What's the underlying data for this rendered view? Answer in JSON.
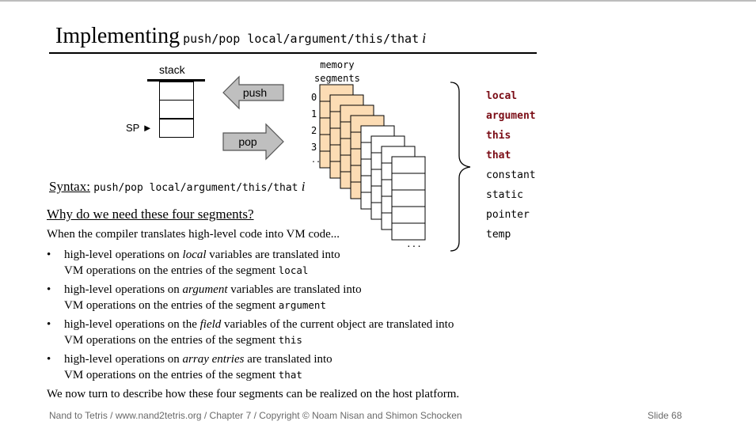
{
  "title": {
    "main": "Implementing",
    "code": "push/pop local/argument/this/that",
    "italic": "i"
  },
  "diagram": {
    "stack_label": "stack",
    "sp_label": "SP",
    "push_label": "push",
    "pop_label": "pop",
    "memory_label_line1": "memory",
    "memory_label_line2": "segments",
    "indices": [
      "0",
      "1",
      "2",
      "3",
      "..."
    ],
    "ellipsis": "...",
    "segments": [
      {
        "name": "local",
        "highlight": true
      },
      {
        "name": "argument",
        "highlight": true
      },
      {
        "name": "this",
        "highlight": true
      },
      {
        "name": "that",
        "highlight": true
      },
      {
        "name": "constant",
        "highlight": false
      },
      {
        "name": "static",
        "highlight": false
      },
      {
        "name": "pointer",
        "highlight": false
      },
      {
        "name": "temp",
        "highlight": false
      }
    ],
    "highlight_color": "#7b0d16",
    "memory_fill": "#fcdcb4"
  },
  "syntax": {
    "label": "Syntax:",
    "code": "push/pop local/argument/this/that",
    "italic": "i"
  },
  "why_heading": "Why do we need these four segments?",
  "intro": "When the compiler translates high-level code into VM code...",
  "bullets": [
    {
      "pre": "high-level operations on ",
      "em": "local",
      "post": " variables are translated into",
      "line2": "VM operations on the entries of the segment ",
      "code": "local"
    },
    {
      "pre": "high-level operations on ",
      "em": "argument",
      "post": " variables are translated into",
      "line2": "VM operations on the entries of the segment ",
      "code": "argument"
    },
    {
      "pre": "high-level operations on the ",
      "em": "field",
      "post": " variables of the current object are translated into",
      "line2": "VM operations on the entries of the segment ",
      "code": "this"
    },
    {
      "pre": "high-level operations on ",
      "em": "array entries",
      "post": " are translated into",
      "line2": "VM operations on the entries of the segment ",
      "code": "that"
    }
  ],
  "outro": "We now turn to describe how these four segments can be realized on the host platform.",
  "footer": "Nand to Tetris / www.nand2tetris.org / Chapter 7 / Copyright © Noam Nisan and Shimon Schocken",
  "slide_number": "Slide 68"
}
